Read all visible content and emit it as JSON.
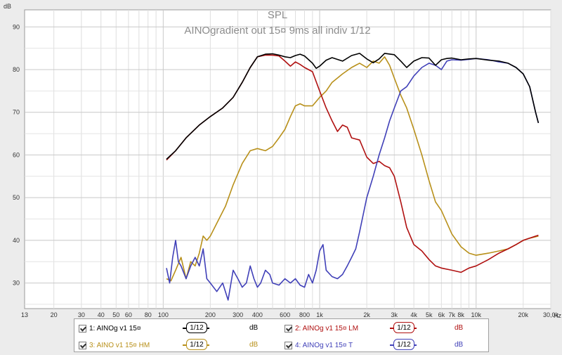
{
  "chart_data": {
    "type": "line",
    "title": "SPL",
    "subtitle": "AINOgradient out 15¤ 9ms all indiv 1/12",
    "ylabel": "dB",
    "xlabel": "",
    "x_scale": "log",
    "xlim": [
      13,
      30000
    ],
    "ylim": [
      24,
      94
    ],
    "grid": true,
    "y_ticks": [
      30,
      40,
      50,
      60,
      70,
      80,
      90
    ],
    "x_ticks": [
      {
        "v": 13,
        "label": "13"
      },
      {
        "v": 20,
        "label": "20"
      },
      {
        "v": 30,
        "label": "30"
      },
      {
        "v": 40,
        "label": "40"
      },
      {
        "v": 50,
        "label": "50"
      },
      {
        "v": 60,
        "label": "60"
      },
      {
        "v": 80,
        "label": "80"
      },
      {
        "v": 100,
        "label": "100"
      },
      {
        "v": 200,
        "label": "200"
      },
      {
        "v": 300,
        "label": "300"
      },
      {
        "v": 400,
        "label": "400"
      },
      {
        "v": 600,
        "label": "600"
      },
      {
        "v": 800,
        "label": "800"
      },
      {
        "v": 1000,
        "label": "1k"
      },
      {
        "v": 2000,
        "label": "2k"
      },
      {
        "v": 3000,
        "label": "3k"
      },
      {
        "v": 4000,
        "label": "4k"
      },
      {
        "v": 5000,
        "label": "5k"
      },
      {
        "v": 6000,
        "label": "6k"
      },
      {
        "v": 7000,
        "label": "7k"
      },
      {
        "v": 8000,
        "label": "8k"
      },
      {
        "v": 10000,
        "label": "10k"
      },
      {
        "v": 20000,
        "label": "20k"
      },
      {
        "v": 30000,
        "label": "30,0k"
      }
    ],
    "x_unit": "Hz",
    "series": [
      {
        "name": "1: AINOg v1 15¤",
        "color": "#000000",
        "points": [
          [
            105,
            59
          ],
          [
            120,
            61
          ],
          [
            140,
            64
          ],
          [
            170,
            67
          ],
          [
            200,
            69
          ],
          [
            240,
            71
          ],
          [
            280,
            73.5
          ],
          [
            320,
            77
          ],
          [
            360,
            80.5
          ],
          [
            400,
            83
          ],
          [
            450,
            83.6
          ],
          [
            500,
            83.7
          ],
          [
            550,
            83.4
          ],
          [
            600,
            83
          ],
          [
            650,
            82.8
          ],
          [
            700,
            83.3
          ],
          [
            750,
            83.6
          ],
          [
            800,
            83.2
          ],
          [
            900,
            81.5
          ],
          [
            950,
            80.3
          ],
          [
            1000,
            80.8
          ],
          [
            1100,
            82.2
          ],
          [
            1200,
            82.8
          ],
          [
            1400,
            82
          ],
          [
            1600,
            83.3
          ],
          [
            1800,
            83.8
          ],
          [
            2000,
            82.5
          ],
          [
            2200,
            81.6
          ],
          [
            2400,
            82.5
          ],
          [
            2600,
            83.8
          ],
          [
            3000,
            83.5
          ],
          [
            3300,
            82
          ],
          [
            3600,
            80.5
          ],
          [
            4000,
            82
          ],
          [
            4500,
            82.8
          ],
          [
            5000,
            82.7
          ],
          [
            5500,
            81
          ],
          [
            6000,
            82.3
          ],
          [
            6500,
            82.6
          ],
          [
            7000,
            82.7
          ],
          [
            8000,
            82.3
          ],
          [
            9000,
            82.5
          ],
          [
            10000,
            82.6
          ],
          [
            12000,
            82.2
          ],
          [
            14000,
            82
          ],
          [
            16000,
            81.5
          ],
          [
            18000,
            80.5
          ],
          [
            20000,
            79
          ],
          [
            22000,
            76
          ],
          [
            24000,
            70
          ],
          [
            25000,
            67.5
          ]
        ]
      },
      {
        "name": "2: AINOg v1 15¤ LM",
        "color": "#b01010",
        "points": [
          [
            105,
            58.8
          ],
          [
            120,
            61
          ],
          [
            140,
            64
          ],
          [
            170,
            67
          ],
          [
            200,
            69
          ],
          [
            240,
            71
          ],
          [
            280,
            73.5
          ],
          [
            320,
            77
          ],
          [
            360,
            80.5
          ],
          [
            400,
            83
          ],
          [
            450,
            83.4
          ],
          [
            500,
            83.4
          ],
          [
            550,
            83.2
          ],
          [
            600,
            82
          ],
          [
            650,
            80.8
          ],
          [
            700,
            81.8
          ],
          [
            750,
            81.2
          ],
          [
            800,
            80.5
          ],
          [
            900,
            79.5
          ],
          [
            1000,
            75
          ],
          [
            1100,
            71
          ],
          [
            1200,
            68
          ],
          [
            1300,
            65.5
          ],
          [
            1400,
            67
          ],
          [
            1500,
            66.5
          ],
          [
            1600,
            64
          ],
          [
            1800,
            63.5
          ],
          [
            2000,
            59.5
          ],
          [
            2200,
            58
          ],
          [
            2400,
            58.5
          ],
          [
            2600,
            57.5
          ],
          [
            2800,
            57
          ],
          [
            3000,
            55
          ],
          [
            3300,
            49
          ],
          [
            3600,
            43
          ],
          [
            4000,
            39
          ],
          [
            4500,
            37.5
          ],
          [
            5000,
            35.5
          ],
          [
            5500,
            34
          ],
          [
            6000,
            33.5
          ],
          [
            7000,
            33
          ],
          [
            8000,
            32.5
          ],
          [
            9000,
            33.5
          ],
          [
            10000,
            34
          ],
          [
            12000,
            35.5
          ],
          [
            14000,
            37
          ],
          [
            16000,
            38
          ],
          [
            18000,
            39
          ],
          [
            20000,
            40
          ],
          [
            22000,
            40.5
          ],
          [
            25000,
            41.2
          ]
        ]
      },
      {
        "name": "3: AINO v1 15¤ HM",
        "color": "#b8901a",
        "points": [
          [
            105,
            31
          ],
          [
            112,
            30.5
          ],
          [
            120,
            33
          ],
          [
            130,
            36
          ],
          [
            140,
            31
          ],
          [
            150,
            35
          ],
          [
            160,
            34
          ],
          [
            170,
            37
          ],
          [
            180,
            41
          ],
          [
            190,
            40
          ],
          [
            200,
            41
          ],
          [
            220,
            44
          ],
          [
            250,
            48
          ],
          [
            280,
            53
          ],
          [
            320,
            58
          ],
          [
            360,
            61
          ],
          [
            400,
            61.5
          ],
          [
            450,
            61
          ],
          [
            500,
            62
          ],
          [
            550,
            64
          ],
          [
            600,
            66
          ],
          [
            650,
            69
          ],
          [
            700,
            71.5
          ],
          [
            750,
            72
          ],
          [
            800,
            71.5
          ],
          [
            900,
            71.5
          ],
          [
            1000,
            73.5
          ],
          [
            1100,
            75
          ],
          [
            1200,
            77
          ],
          [
            1400,
            79
          ],
          [
            1600,
            80.5
          ],
          [
            1800,
            81.5
          ],
          [
            2000,
            80.5
          ],
          [
            2200,
            82
          ],
          [
            2400,
            81.5
          ],
          [
            2600,
            83
          ],
          [
            2800,
            81
          ],
          [
            3000,
            78
          ],
          [
            3300,
            74
          ],
          [
            3600,
            71
          ],
          [
            4000,
            66
          ],
          [
            4500,
            60
          ],
          [
            5000,
            54
          ],
          [
            5500,
            49
          ],
          [
            6000,
            47
          ],
          [
            7000,
            41.5
          ],
          [
            8000,
            38.5
          ],
          [
            9000,
            37
          ],
          [
            10000,
            36.5
          ],
          [
            12000,
            37
          ],
          [
            14000,
            37.5
          ],
          [
            16000,
            38
          ],
          [
            18000,
            39
          ],
          [
            20000,
            40
          ],
          [
            22000,
            40.5
          ],
          [
            25000,
            41
          ]
        ]
      },
      {
        "name": "4: AINOg v1 15¤ T",
        "color": "#4040b8",
        "points": [
          [
            105,
            33.5
          ],
          [
            110,
            30
          ],
          [
            115,
            36
          ],
          [
            120,
            40
          ],
          [
            125,
            35
          ],
          [
            130,
            34
          ],
          [
            140,
            31
          ],
          [
            150,
            34
          ],
          [
            160,
            36
          ],
          [
            170,
            34
          ],
          [
            180,
            38
          ],
          [
            190,
            31
          ],
          [
            200,
            30
          ],
          [
            220,
            28
          ],
          [
            240,
            30
          ],
          [
            260,
            26
          ],
          [
            280,
            33
          ],
          [
            300,
            31
          ],
          [
            320,
            29
          ],
          [
            340,
            30
          ],
          [
            360,
            34
          ],
          [
            380,
            31
          ],
          [
            400,
            29
          ],
          [
            420,
            30
          ],
          [
            450,
            33
          ],
          [
            480,
            32
          ],
          [
            500,
            30
          ],
          [
            550,
            29.5
          ],
          [
            600,
            31
          ],
          [
            650,
            30
          ],
          [
            700,
            31
          ],
          [
            750,
            29.5
          ],
          [
            800,
            29
          ],
          [
            850,
            32
          ],
          [
            900,
            30
          ],
          [
            950,
            33
          ],
          [
            1000,
            37.5
          ],
          [
            1050,
            39
          ],
          [
            1100,
            33
          ],
          [
            1200,
            31.5
          ],
          [
            1300,
            31
          ],
          [
            1400,
            32
          ],
          [
            1500,
            34
          ],
          [
            1600,
            36
          ],
          [
            1700,
            38
          ],
          [
            1800,
            42
          ],
          [
            2000,
            50
          ],
          [
            2200,
            55
          ],
          [
            2400,
            60
          ],
          [
            2600,
            64
          ],
          [
            2800,
            68
          ],
          [
            3000,
            71
          ],
          [
            3300,
            75
          ],
          [
            3600,
            76
          ],
          [
            4000,
            78.5
          ],
          [
            4500,
            80.5
          ],
          [
            5000,
            81.5
          ],
          [
            5500,
            81
          ],
          [
            6000,
            80
          ],
          [
            6500,
            82
          ],
          [
            7000,
            82.3
          ],
          [
            8000,
            82.2
          ],
          [
            9000,
            82.4
          ],
          [
            10000,
            82.6
          ],
          [
            12000,
            82.3
          ],
          [
            14000,
            81.8
          ],
          [
            16000,
            81.5
          ],
          [
            18000,
            80.5
          ],
          [
            20000,
            79
          ],
          [
            22000,
            76
          ],
          [
            24000,
            70
          ],
          [
            25000,
            67.5
          ]
        ]
      }
    ]
  },
  "legend": {
    "items": [
      {
        "label": "1: AINOg v1 15¤",
        "color": "#000000",
        "smoothing": "1/12",
        "unit": "dB"
      },
      {
        "label": "2: AINOg v1 15¤ LM",
        "color": "#b01010",
        "smoothing": "1/12",
        "unit": "dB"
      },
      {
        "label": "3: AINO v1 15¤ HM",
        "color": "#b8901a",
        "smoothing": "1/12",
        "unit": "dB"
      },
      {
        "label": "4: AINOg v1 15¤ T",
        "color": "#4040b8",
        "smoothing": "1/12",
        "unit": "dB"
      }
    ]
  }
}
